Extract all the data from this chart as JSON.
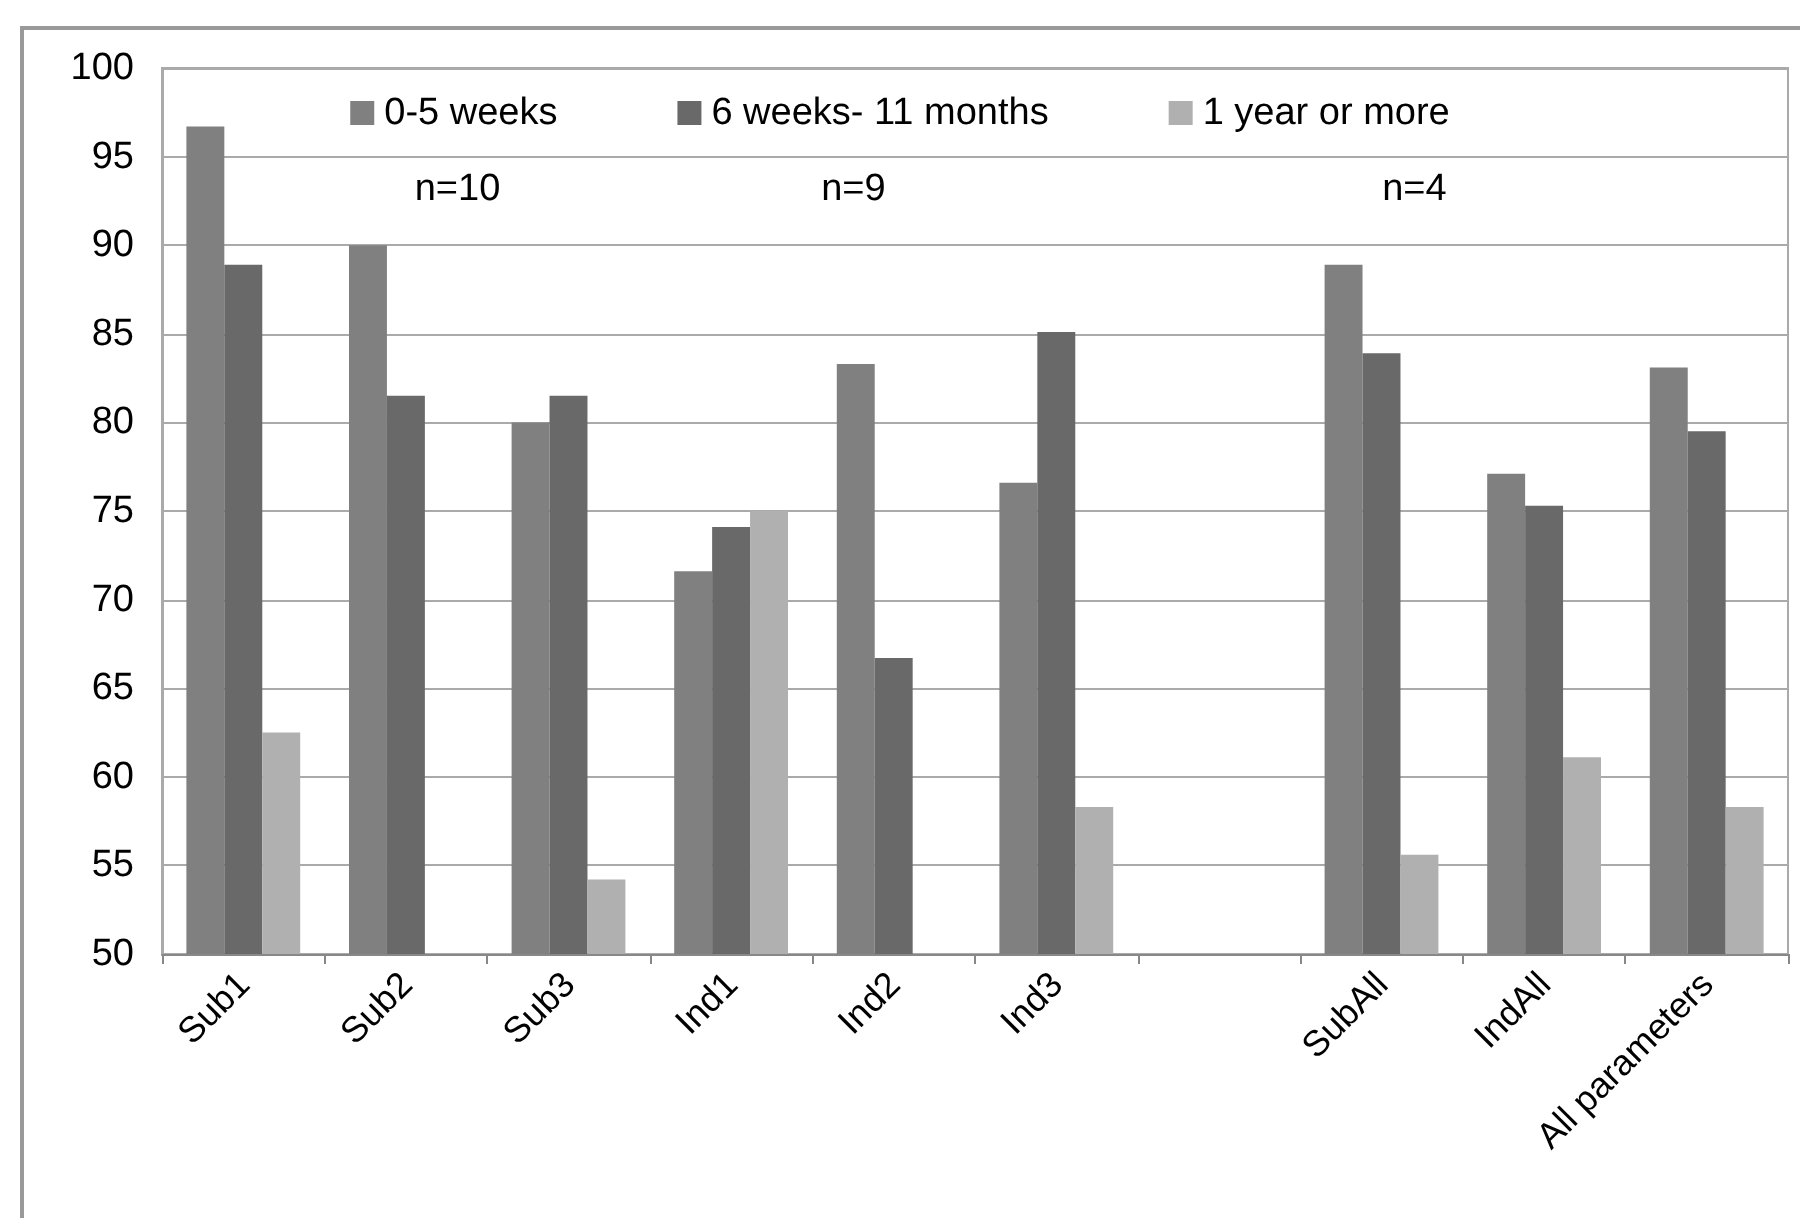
{
  "chart_data": {
    "type": "bar",
    "categories": [
      "Sub1",
      "Sub2",
      "Sub3",
      "Ind1",
      "Ind2",
      "Ind3",
      null,
      "SubAll",
      "IndAll",
      "All parameters"
    ],
    "series": [
      {
        "name": "0-5 weeks",
        "color": "#808080",
        "values": [
          96.7,
          90,
          80,
          71.6,
          83.3,
          76.6,
          null,
          88.9,
          77.1,
          83.1
        ]
      },
      {
        "name": "6 weeks- 11 months",
        "color": "#696969",
        "values": [
          88.9,
          81.5,
          81.5,
          74.1,
          66.7,
          85.1,
          null,
          83.9,
          75.3,
          79.5
        ]
      },
      {
        "name": "1 year or more",
        "color": "#b0b0b0",
        "values": [
          62.5,
          null,
          54.2,
          75,
          null,
          58.3,
          null,
          55.6,
          61.1,
          58.3
        ]
      }
    ],
    "ylim": [
      50,
      100
    ],
    "yticks": [
      50,
      55,
      60,
      65,
      70,
      75,
      80,
      85,
      90,
      95,
      100
    ],
    "annotations": [
      "n=10",
      "n=9",
      "n=4"
    ],
    "grid": "y",
    "legend": "top"
  }
}
